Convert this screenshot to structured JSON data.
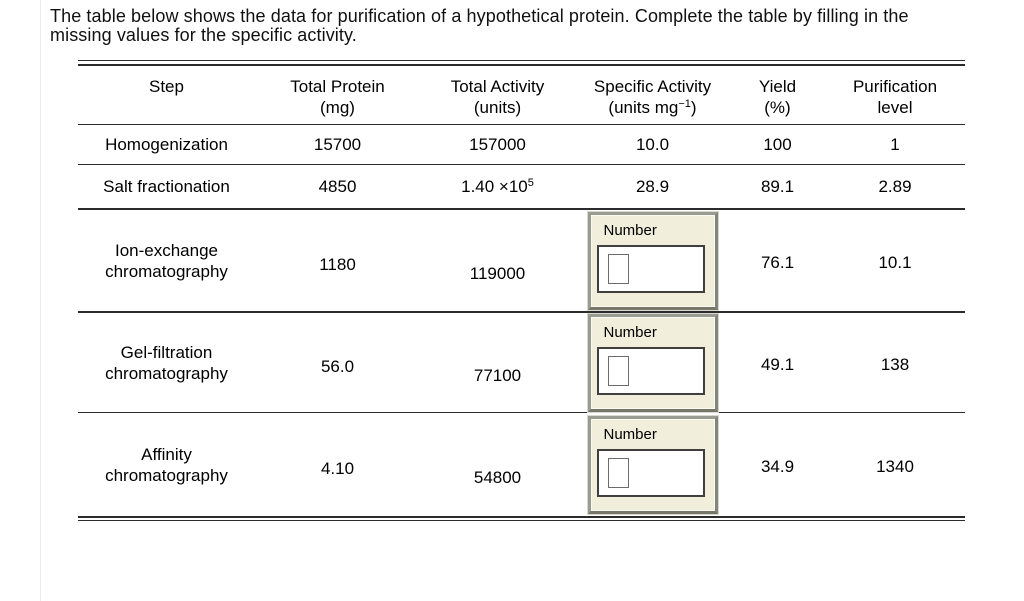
{
  "instructions": {
    "line1": "The table below shows the data for purification of a hypothetical protein. Complete the table by filling in the",
    "line2": "missing values for the specific activity."
  },
  "table": {
    "header": {
      "step": {
        "line1": "Step"
      },
      "total_protein": {
        "line1": "Total Protein",
        "line2": "(mg)"
      },
      "total_activity": {
        "line1": "Total Activity",
        "line2": "(units)"
      },
      "specific_activity": {
        "line1": "Specific Activity",
        "line2_pre": "(units mg",
        "line2_sup": "−1",
        "line2_post": ")"
      },
      "yield": {
        "line1": "Yield",
        "line2": "(%)"
      },
      "purification": {
        "line1": "Purification",
        "line2": "level"
      }
    },
    "rows": [
      {
        "step": "Homogenization",
        "total_protein": "15700",
        "total_activity": "157000",
        "specific_activity": "10.0",
        "yield_pct": "100",
        "purification_level": "1"
      },
      {
        "step": "Salt fractionation",
        "total_protein": "4850",
        "total_activity_base": "1.40 ×10",
        "total_activity_sup": "5",
        "specific_activity": "28.9",
        "yield_pct": "89.1",
        "purification_level": "2.89"
      },
      {
        "step_line1": "Ion-exchange",
        "step_line2": "chromatography",
        "total_protein": "1180",
        "total_activity": "119000",
        "input_label": "Number",
        "input_value": "",
        "yield_pct": "76.1",
        "purification_level": "10.1"
      },
      {
        "step_line1": "Gel-filtration",
        "step_line2": "chromatography",
        "total_protein": "56.0",
        "total_activity": "77100",
        "input_label": "Number",
        "input_value": "",
        "yield_pct": "49.1",
        "purification_level": "138"
      },
      {
        "step_line1": "Affinity",
        "step_line2": "chromatography",
        "total_protein": "4.10",
        "total_activity": "54800",
        "input_label": "Number",
        "input_value": "",
        "yield_pct": "34.9",
        "purification_level": "1340"
      }
    ]
  },
  "colors": {
    "widget_face": "#F1EEDC",
    "widget_border": "#83847A",
    "rule": "#2B2B2B",
    "text": "#000000"
  }
}
